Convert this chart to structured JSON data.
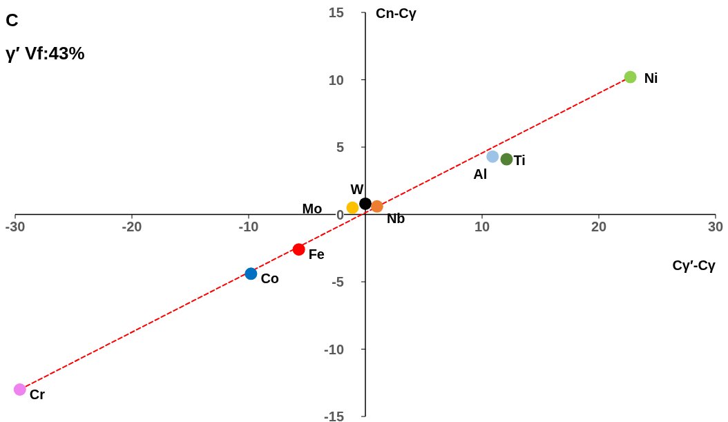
{
  "chart_data": {
    "type": "scatter",
    "title": "C",
    "subtitle": "γ′ Vf:43%",
    "xlabel": "Cγ′-Cγ",
    "ylabel": "Cn-Cγ",
    "xlim": [
      -30,
      30
    ],
    "xticks": [
      -30,
      -20,
      -10,
      10,
      20,
      30
    ],
    "ylim": [
      -15,
      15
    ],
    "yticks": [
      -15,
      -10,
      -5,
      0,
      5,
      10,
      15
    ],
    "series": [
      {
        "name": "Ni",
        "color": "#92d050",
        "x": [
          22.7
        ],
        "values": [
          10.2
        ],
        "marker": "circle"
      },
      {
        "name": "Al",
        "color": "#9dc3e6",
        "x": [
          10.9
        ],
        "values": [
          4.3
        ],
        "marker": "circle"
      },
      {
        "name": "Ti",
        "color": "#548235",
        "x": [
          12.1
        ],
        "values": [
          4.1
        ],
        "marker": "circle"
      },
      {
        "name": "W",
        "color": "#000000",
        "x": [
          0
        ],
        "values": [
          0.8
        ],
        "marker": "circle"
      },
      {
        "name": "Mo",
        "color": "#ffc000",
        "x": [
          -1.1
        ],
        "values": [
          0.5
        ],
        "marker": "circle"
      },
      {
        "name": "Nb",
        "color": "#ed7d31",
        "x": [
          1.0
        ],
        "values": [
          0.6
        ],
        "marker": "circle"
      },
      {
        "name": "Fe",
        "color": "#ff0000",
        "x": [
          -5.7
        ],
        "values": [
          -2.6
        ],
        "marker": "circle"
      },
      {
        "name": "Co",
        "color": "#0070c0",
        "x": [
          -9.8
        ],
        "values": [
          -4.4
        ],
        "marker": "circle"
      },
      {
        "name": "Cr",
        "color": "#ee82ee",
        "x": [
          -29.6
        ],
        "values": [
          -13.0
        ],
        "marker": "circle"
      },
      {
        "type": "line",
        "color": "#ff0000",
        "line_style": "dashed",
        "x": [
          -29.6,
          22.7
        ],
        "values": [
          -13.0,
          10.2
        ]
      }
    ]
  }
}
